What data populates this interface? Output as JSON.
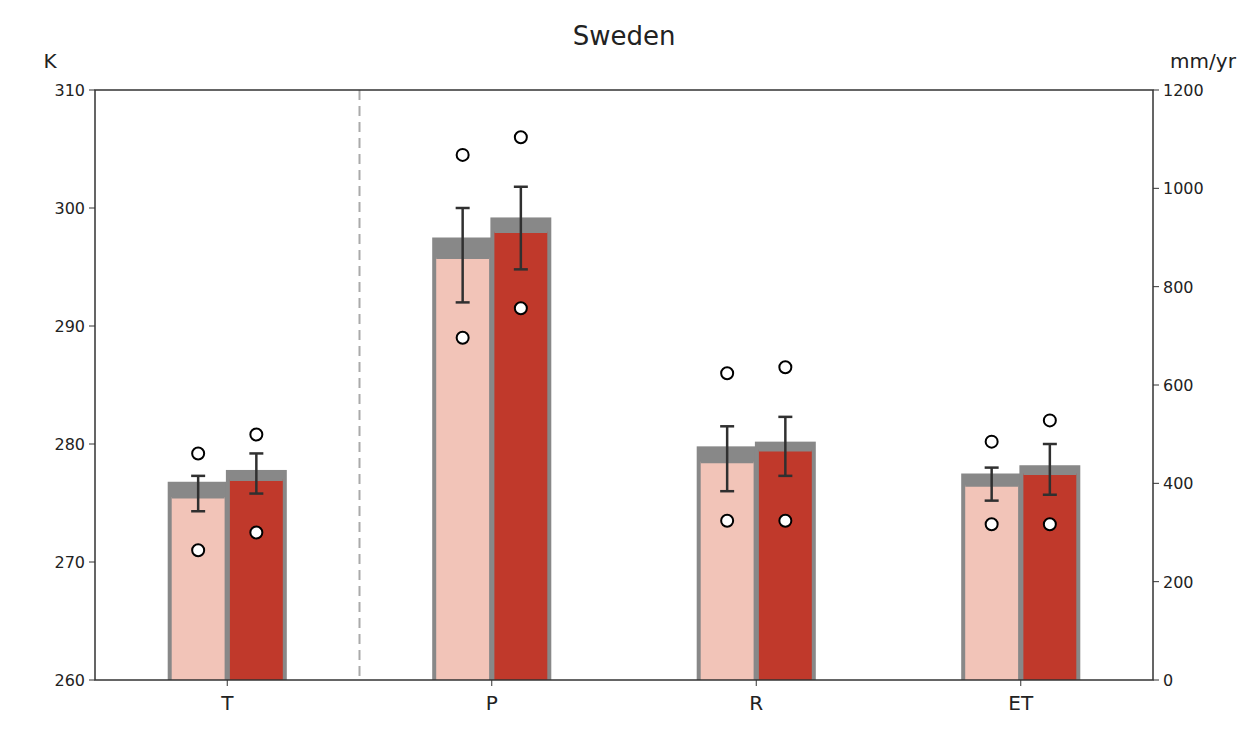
{
  "chart_data": {
    "type": "bar",
    "title": "Sweden",
    "ylabel": "K",
    "y2label": "mm/yr",
    "categories": [
      "T",
      "P",
      "R",
      "ET"
    ],
    "ylim": [
      260,
      310
    ],
    "yticks": [
      260,
      270,
      280,
      290,
      300,
      310
    ],
    "y2lim": [
      0,
      1200
    ],
    "y2ticks": [
      0,
      200,
      400,
      600,
      800,
      1000,
      1200
    ],
    "grid": false,
    "series": [
      {
        "color": "#F2C4B8",
        "values": [
          275.5,
          295.8,
          278.5,
          276.5
        ],
        "gray_top": [
          276.8,
          297.5,
          279.8,
          277.5
        ],
        "err_low": [
          1.2,
          3.8,
          2.5,
          1.3
        ],
        "err_high": [
          1.8,
          4.2,
          3.0,
          1.5
        ],
        "circle_low": [
          271.0,
          289.0,
          273.5,
          273.2
        ],
        "circle_high": [
          279.2,
          304.5,
          286.0,
          280.2
        ]
      },
      {
        "color": "#C0392B",
        "values": [
          277.0,
          298.0,
          279.5,
          277.5
        ],
        "gray_top": [
          277.8,
          299.2,
          280.2,
          278.2
        ],
        "err_low": [
          1.2,
          3.2,
          2.2,
          1.8
        ],
        "err_high": [
          2.2,
          3.8,
          2.8,
          2.5
        ],
        "circle_low": [
          272.5,
          291.5,
          273.5,
          273.2
        ],
        "circle_high": [
          280.8,
          306.0,
          286.5,
          282.0
        ]
      }
    ]
  }
}
